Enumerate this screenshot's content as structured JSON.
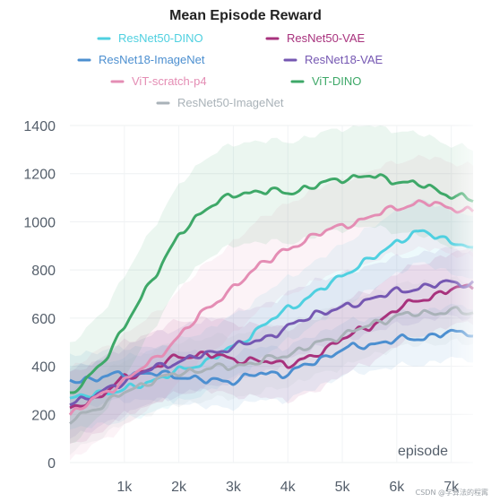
{
  "chart_data": {
    "type": "line",
    "title": "Mean Episode Reward",
    "xlabel": "episode",
    "ylabel": "",
    "xlim": [
      0,
      7400
    ],
    "ylim": [
      0,
      1400
    ],
    "x_ticks": [
      {
        "value": 1000,
        "label": "1k"
      },
      {
        "value": 2000,
        "label": "2k"
      },
      {
        "value": 3000,
        "label": "3k"
      },
      {
        "value": 4000,
        "label": "4k"
      },
      {
        "value": 5000,
        "label": "5k"
      },
      {
        "value": 6000,
        "label": "6k"
      },
      {
        "value": 7000,
        "label": "7k"
      }
    ],
    "y_ticks": [
      0,
      200,
      400,
      600,
      800,
      1000,
      1200,
      1400
    ],
    "grid": true,
    "legend_placement": "top",
    "series": [
      {
        "name": "ResNet50-DINO",
        "color": "#4fd0e0",
        "band": 130,
        "points": [
          [
            0,
            260
          ],
          [
            500,
            290
          ],
          [
            1000,
            300
          ],
          [
            1500,
            340
          ],
          [
            2000,
            380
          ],
          [
            2500,
            420
          ],
          [
            3000,
            480
          ],
          [
            3500,
            560
          ],
          [
            4000,
            640
          ],
          [
            4500,
            700
          ],
          [
            5000,
            780
          ],
          [
            5500,
            840
          ],
          [
            6000,
            920
          ],
          [
            6500,
            960
          ],
          [
            7000,
            920
          ],
          [
            7400,
            880
          ]
        ]
      },
      {
        "name": "ResNet50-VAE",
        "color": "#a8327d",
        "band": 150,
        "points": [
          [
            0,
            220
          ],
          [
            500,
            270
          ],
          [
            1000,
            350
          ],
          [
            1500,
            390
          ],
          [
            2000,
            440
          ],
          [
            2500,
            450
          ],
          [
            3000,
            430
          ],
          [
            3500,
            420
          ],
          [
            4000,
            410
          ],
          [
            4500,
            440
          ],
          [
            5000,
            520
          ],
          [
            5500,
            560
          ],
          [
            6000,
            640
          ],
          [
            6500,
            680
          ],
          [
            7000,
            720
          ],
          [
            7400,
            730
          ]
        ]
      },
      {
        "name": "ResNet18-ImageNet",
        "color": "#4c8fd0",
        "band": 110,
        "points": [
          [
            0,
            340
          ],
          [
            500,
            350
          ],
          [
            1000,
            370
          ],
          [
            1500,
            370
          ],
          [
            2000,
            360
          ],
          [
            2500,
            340
          ],
          [
            3000,
            340
          ],
          [
            3500,
            370
          ],
          [
            4000,
            370
          ],
          [
            4500,
            420
          ],
          [
            5000,
            470
          ],
          [
            5500,
            490
          ],
          [
            6000,
            510
          ],
          [
            6500,
            520
          ],
          [
            7000,
            540
          ],
          [
            7400,
            540
          ]
        ]
      },
      {
        "name": "ResNet18-VAE",
        "color": "#7557b2",
        "band": 140,
        "points": [
          [
            0,
            250
          ],
          [
            500,
            280
          ],
          [
            1000,
            340
          ],
          [
            1500,
            390
          ],
          [
            2000,
            420
          ],
          [
            2500,
            450
          ],
          [
            3000,
            480
          ],
          [
            3500,
            510
          ],
          [
            4000,
            560
          ],
          [
            4500,
            620
          ],
          [
            5000,
            640
          ],
          [
            5500,
            680
          ],
          [
            6000,
            710
          ],
          [
            6500,
            730
          ],
          [
            7000,
            750
          ],
          [
            7400,
            740
          ]
        ]
      },
      {
        "name": "ViT-scratch-p4",
        "color": "#e48db4",
        "band": 190,
        "points": [
          [
            0,
            200
          ],
          [
            500,
            270
          ],
          [
            1000,
            340
          ],
          [
            1500,
            420
          ],
          [
            2000,
            520
          ],
          [
            2500,
            640
          ],
          [
            3000,
            720
          ],
          [
            3500,
            830
          ],
          [
            4000,
            880
          ],
          [
            4500,
            950
          ],
          [
            5000,
            980
          ],
          [
            5500,
            1020
          ],
          [
            6000,
            1060
          ],
          [
            6500,
            1080
          ],
          [
            7000,
            1060
          ],
          [
            7400,
            1040
          ]
        ]
      },
      {
        "name": "ViT-DINO",
        "color": "#3ea868",
        "band": 210,
        "points": [
          [
            0,
            280
          ],
          [
            300,
            340
          ],
          [
            600,
            420
          ],
          [
            1000,
            560
          ],
          [
            1500,
            760
          ],
          [
            2000,
            940
          ],
          [
            2500,
            1060
          ],
          [
            3000,
            1110
          ],
          [
            3500,
            1130
          ],
          [
            4000,
            1120
          ],
          [
            4500,
            1150
          ],
          [
            5000,
            1180
          ],
          [
            5500,
            1190
          ],
          [
            6000,
            1170
          ],
          [
            6500,
            1150
          ],
          [
            7000,
            1110
          ],
          [
            7400,
            1090
          ]
        ]
      },
      {
        "name": "ResNet50-ImageNet",
        "color": "#a9b2b8",
        "band": 130,
        "points": [
          [
            0,
            170
          ],
          [
            500,
            230
          ],
          [
            1000,
            290
          ],
          [
            1500,
            340
          ],
          [
            2000,
            370
          ],
          [
            2500,
            390
          ],
          [
            3000,
            400
          ],
          [
            3500,
            420
          ],
          [
            4000,
            450
          ],
          [
            4500,
            490
          ],
          [
            5000,
            530
          ],
          [
            5500,
            570
          ],
          [
            6000,
            610
          ],
          [
            6500,
            620
          ],
          [
            7000,
            630
          ],
          [
            7400,
            620
          ]
        ]
      }
    ]
  },
  "watermark": "CSDN @学算法的程寗"
}
